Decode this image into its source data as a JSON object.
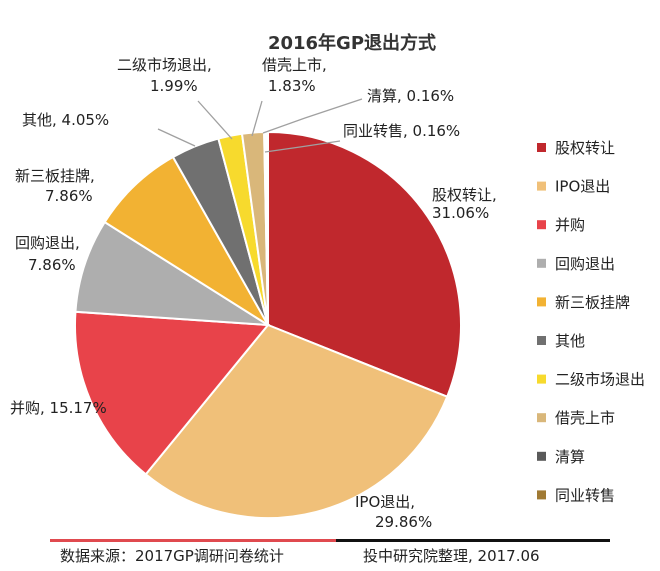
{
  "chart_data": {
    "type": "pie",
    "title": "2016年GP退出方式",
    "legend_position": "right",
    "slices": [
      {
        "name": "股权转让",
        "value": 31.06,
        "label_name": "股权转让,",
        "label_value": "31.06%",
        "color": "#C0282D"
      },
      {
        "name": "IPO退出",
        "value": 29.86,
        "label_name": "IPO退出,",
        "label_value": "29.86%",
        "color": "#F0C079"
      },
      {
        "name": "并购",
        "value": 15.17,
        "label_name": "并购, 15.17%",
        "label_value": "",
        "color": "#E8434A"
      },
      {
        "name": "回购退出",
        "value": 7.86,
        "label_name": "回购退出,",
        "label_value": "7.86%",
        "color": "#AEAEAE"
      },
      {
        "name": "新三板挂牌",
        "value": 7.86,
        "label_name": "新三板挂牌,",
        "label_value": "7.86%",
        "color": "#F2B233"
      },
      {
        "name": "其他",
        "value": 4.05,
        "label_name": "其他, 4.05%",
        "label_value": "",
        "color": "#707070"
      },
      {
        "name": "二级市场退出",
        "value": 1.99,
        "label_name": "二级市场退出,",
        "label_value": "1.99%",
        "color": "#F7DA2D"
      },
      {
        "name": "借壳上市",
        "value": 1.83,
        "label_name": "借壳上市,",
        "label_value": "1.83%",
        "color": "#D9B77A"
      },
      {
        "name": "清算",
        "value": 0.16,
        "label_name": "清算, 0.16%",
        "label_value": "",
        "color": "#5A5A5A"
      },
      {
        "name": "同业转售",
        "value": 0.16,
        "label_name": "同业转售, 0.16%",
        "label_value": "",
        "color": "#A07A34"
      }
    ],
    "legend": [
      "股权转让",
      "IPO退出",
      "并购",
      "回购退出",
      "新三板挂牌",
      "其他",
      "二级市场退出",
      "借壳上市",
      "清算",
      "同业转售"
    ]
  },
  "source": {
    "left": "数据来源：2017GP调研问卷统计",
    "right": "投中研究院整理, 2017.06",
    "bar_colors": [
      "#E04A4F",
      "#111111"
    ]
  }
}
